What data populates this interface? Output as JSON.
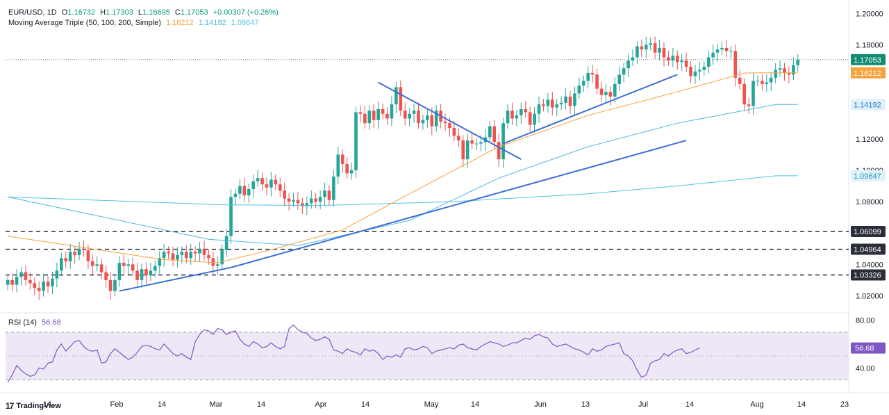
{
  "header": {
    "symbol": "EUR/USD, 1D",
    "open_label": "O",
    "open": "1.16732",
    "high_label": "H",
    "high": "1.17303",
    "low_label": "L",
    "low": "1.16695",
    "close_label": "C",
    "close": "1.17053",
    "change": "+0.00307 (+0.26%)",
    "ma_title": "Moving Average Triple (50, 100, 200, Simple)",
    "ma50": "1.16212",
    "ma100": "1.14192",
    "ma200": "1.09647"
  },
  "rsi_header": {
    "title": "RSI (14)",
    "value": "56.68"
  },
  "brand": {
    "name": "TradingView"
  },
  "colors": {
    "up": "#26a69a",
    "down": "#ef5350",
    "ma50": "#f7a23b",
    "ma100": "#4fb8e0",
    "ma200": "#4fc3e0",
    "trendline": "#3d6fd6",
    "rsi": "#7e57c2",
    "rsi_band": "#ede7f6",
    "close_badge": "#138a74",
    "level_badge": "#2a2e39"
  },
  "chart_data": [
    {
      "type": "candlestick",
      "y_ticks": [
        "1.20000",
        "1.18000",
        "1.12000",
        "1.10000",
        "1.08000",
        "1.04000",
        "1.02000"
      ],
      "ylim": [
        1.01,
        1.205
      ],
      "x_ticks": [
        "14",
        "Feb",
        "14",
        "Mar",
        "14",
        "Apr",
        "14",
        "May",
        "14",
        "Jun",
        "13",
        "Jul",
        "14",
        "Aug",
        "14",
        "23"
      ],
      "price_labels": [
        {
          "text": "1.17053",
          "value": 1.17053,
          "kind": "close"
        },
        {
          "text": "1.16212",
          "value": 1.16212,
          "kind": "ma50"
        },
        {
          "text": "1.14192",
          "value": 1.14192,
          "kind": "ma100"
        },
        {
          "text": "1.09647",
          "value": 1.09647,
          "kind": "ma200"
        },
        {
          "text": "1.06099",
          "value": 1.06099,
          "kind": "level"
        },
        {
          "text": "1.04964",
          "value": 1.04964,
          "kind": "level"
        },
        {
          "text": "1.03326",
          "value": 1.03326,
          "kind": "level"
        }
      ],
      "horizontal_levels": [
        1.06099,
        1.04964,
        1.03326
      ],
      "last_close": 1.17053,
      "closes": [
        1.03,
        1.027,
        1.032,
        1.035,
        1.03,
        1.028,
        1.025,
        1.023,
        1.029,
        1.026,
        1.031,
        1.036,
        1.044,
        1.042,
        1.048,
        1.046,
        1.05,
        1.049,
        1.042,
        1.039,
        1.04,
        1.035,
        1.03,
        1.023,
        1.03,
        1.041,
        1.039,
        1.04,
        1.036,
        1.03,
        1.037,
        1.033,
        1.036,
        1.039,
        1.044,
        1.048,
        1.047,
        1.043,
        1.046,
        1.048,
        1.044,
        1.048,
        1.047,
        1.05,
        1.046,
        1.044,
        1.039,
        1.04,
        1.049,
        1.058,
        1.083,
        1.085,
        1.09,
        1.084,
        1.088,
        1.093,
        1.095,
        1.091,
        1.089,
        1.094,
        1.091,
        1.087,
        1.082,
        1.08,
        1.081,
        1.079,
        1.077,
        1.079,
        1.082,
        1.08,
        1.083,
        1.087,
        1.081,
        1.096,
        1.11,
        1.104,
        1.098,
        1.1,
        1.137,
        1.136,
        1.13,
        1.138,
        1.132,
        1.139,
        1.136,
        1.133,
        1.142,
        1.153,
        1.138,
        1.133,
        1.136,
        1.138,
        1.13,
        1.132,
        1.135,
        1.128,
        1.138,
        1.131,
        1.13,
        1.127,
        1.122,
        1.119,
        1.107,
        1.119,
        1.117,
        1.117,
        1.118,
        1.121,
        1.128,
        1.118,
        1.107,
        1.13,
        1.138,
        1.133,
        1.135,
        1.139,
        1.137,
        1.129,
        1.136,
        1.142,
        1.141,
        1.145,
        1.14,
        1.142,
        1.143,
        1.147,
        1.141,
        1.149,
        1.154,
        1.157,
        1.162,
        1.161,
        1.152,
        1.148,
        1.15,
        1.147,
        1.155,
        1.161,
        1.165,
        1.17,
        1.172,
        1.179,
        1.177,
        1.18,
        1.181,
        1.175,
        1.178,
        1.172,
        1.17,
        1.173,
        1.169,
        1.17,
        1.166,
        1.16,
        1.163,
        1.164,
        1.166,
        1.172,
        1.175,
        1.177,
        1.178,
        1.176,
        1.176,
        1.159,
        1.155,
        1.142,
        1.141,
        1.157,
        1.157,
        1.155,
        1.156,
        1.159,
        1.164,
        1.165,
        1.162,
        1.161,
        1.167,
        1.1705
      ],
      "ma50_anchor": [
        [
          0,
          1.058
        ],
        [
          35,
          1.043
        ],
        [
          47,
          1.041
        ],
        [
          60,
          1.05
        ],
        [
          75,
          1.062
        ],
        [
          90,
          1.085
        ],
        [
          110,
          1.115
        ],
        [
          130,
          1.135
        ],
        [
          150,
          1.15
        ],
        [
          165,
          1.162
        ],
        [
          172,
          1.16212
        ]
      ],
      "ma100_anchor": [
        [
          0,
          1.083
        ],
        [
          45,
          1.056
        ],
        [
          65,
          1.052
        ],
        [
          90,
          1.068
        ],
        [
          110,
          1.095
        ],
        [
          130,
          1.115
        ],
        [
          150,
          1.13
        ],
        [
          172,
          1.14192
        ]
      ],
      "ma200_anchor": [
        [
          0,
          1.083
        ],
        [
          48,
          1.078
        ],
        [
          70,
          1.0775
        ],
        [
          100,
          1.08
        ],
        [
          130,
          1.085
        ],
        [
          150,
          1.09
        ],
        [
          172,
          1.09647
        ]
      ],
      "trendlines": [
        {
          "from": [
            25,
            1.023
          ],
          "to": [
            50,
            1.038
          ]
        },
        {
          "from": [
            50,
            1.038
          ],
          "to": [
            152,
            1.119
          ]
        },
        {
          "from": [
            83,
            1.156
          ],
          "to": [
            115,
            1.107
          ]
        },
        {
          "from": [
            111,
            1.117
          ],
          "to": [
            150,
            1.161
          ]
        }
      ]
    },
    {
      "type": "line",
      "name": "RSI (14)",
      "y_ticks": [
        "80.00",
        "40.00"
      ],
      "ylim": [
        25,
        85
      ],
      "band": [
        30,
        70
      ],
      "midline": 50,
      "last_value": 56.68,
      "values": [
        28,
        34,
        42,
        38,
        35,
        33,
        34,
        40,
        39,
        44,
        45,
        55,
        60,
        54,
        58,
        62,
        63,
        58,
        55,
        54,
        55,
        44,
        45,
        52,
        56,
        53,
        50,
        47,
        49,
        53,
        58,
        59,
        58,
        56,
        55,
        60,
        56,
        52,
        50,
        52,
        49,
        47,
        62,
        68,
        72,
        71,
        68,
        73,
        72,
        68,
        70,
        71,
        64,
        60,
        58,
        62,
        60,
        57,
        58,
        61,
        58,
        56,
        58,
        73,
        76,
        72,
        70,
        69,
        65,
        63,
        64,
        66,
        64,
        55,
        54,
        52,
        56,
        54,
        53,
        51,
        56,
        54,
        55,
        52,
        47,
        50,
        49,
        51,
        49,
        56,
        57,
        55,
        56,
        58,
        57,
        52,
        54,
        55,
        56,
        57,
        56,
        59,
        60,
        57,
        56,
        55,
        58,
        60,
        62,
        61,
        60,
        58,
        59,
        61,
        61,
        63,
        65,
        64,
        67,
        68,
        66,
        65,
        60,
        58,
        59,
        60,
        58,
        56,
        55,
        53,
        51,
        56,
        54,
        55,
        58,
        59,
        60,
        61,
        52,
        50,
        46,
        38,
        32,
        34,
        44,
        46,
        47,
        52,
        50,
        53,
        55,
        56,
        52,
        53,
        55,
        56.68
      ]
    }
  ]
}
